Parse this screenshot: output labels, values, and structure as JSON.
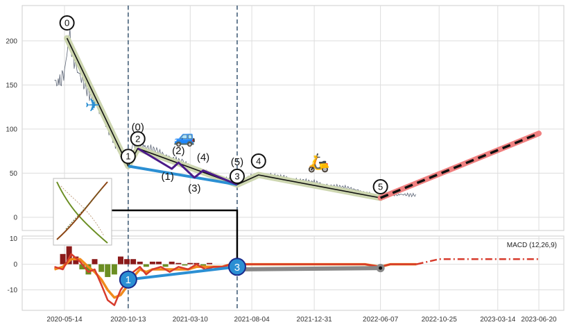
{
  "chart_data": [
    {
      "type": "line",
      "panel": "price",
      "x_ticks": [
        "2020-05-14",
        "2020-10-13",
        "2021-03-10",
        "2021-08-04",
        "2021-12-31",
        "2022-06-07",
        "2022-10-25",
        "2023-03-14",
        "2023-06-20"
      ],
      "y_ticks": [
        0,
        50,
        100,
        150,
        200
      ],
      "ylim": [
        -15,
        240
      ],
      "grid": true,
      "price_series": {
        "x": [
          "2020-04-20",
          "2020-05-01",
          "2020-05-14",
          "2020-05-25",
          "2020-06-10",
          "2020-07-01",
          "2020-08-01",
          "2020-09-01",
          "2020-09-20",
          "2020-10-13",
          "2020-10-25",
          "2020-11-20",
          "2020-12-20",
          "2021-01-20",
          "2021-02-20",
          "2021-03-20",
          "2021-04-20",
          "2021-05-20",
          "2021-06-20",
          "2021-07-01",
          "2021-07-25",
          "2021-08-20",
          "2021-09-20",
          "2021-10-20",
          "2021-11-20",
          "2021-12-31",
          "2022-02-01",
          "2022-03-15",
          "2022-04-20",
          "2022-06-07",
          "2022-07-20",
          "2022-09-01"
        ],
        "values": [
          155,
          150,
          165,
          205,
          170,
          150,
          125,
          95,
          75,
          58,
          82,
          80,
          75,
          68,
          62,
          55,
          50,
          46,
          42,
          38,
          45,
          48,
          47,
          45,
          42,
          40,
          36,
          34,
          30,
          22,
          26,
          25
        ]
      },
      "wave_points": [
        {
          "label": "0",
          "x": "2020-05-20",
          "y": 203
        },
        {
          "label": "1",
          "x": "2020-10-13",
          "y": 58
        },
        {
          "label": "2",
          "x": "2020-11-05",
          "y": 78
        },
        {
          "label": "3",
          "x": "2021-06-30",
          "y": 37
        },
        {
          "label": "4",
          "x": "2021-08-20",
          "y": 48
        },
        {
          "label": "5",
          "x": "2022-06-07",
          "y": 22
        }
      ],
      "sub_wave_points": [
        {
          "label": "(0)",
          "x": "2020-11-05",
          "y": 78
        },
        {
          "label": "(1)",
          "x": "2021-01-25",
          "y": 55
        },
        {
          "label": "(2)",
          "x": "2021-02-10",
          "y": 62
        },
        {
          "label": "(3)",
          "x": "2021-03-20",
          "y": 45
        },
        {
          "label": "(4)",
          "x": "2021-04-10",
          "y": 53
        },
        {
          "label": "(5)",
          "x": "2021-06-30",
          "y": 37
        }
      ],
      "projection": {
        "x": [
          "2022-06-07",
          "2023-06-20"
        ],
        "values": [
          22,
          95
        ]
      },
      "vertical_markers": [
        "2020-10-13",
        "2021-06-30"
      ],
      "icons": [
        {
          "name": "airplane-icon",
          "glyph": "✈",
          "x": "2020-07-20",
          "y": 120
        },
        {
          "name": "car-icon",
          "glyph": "🚙",
          "x": "2021-02-25",
          "y": 84
        },
        {
          "name": "scooter-icon",
          "glyph": "🛵",
          "x": "2022-01-10",
          "y": 55
        }
      ],
      "colors": {
        "price": "#5b6475",
        "wave_band": "#cdd6b0",
        "wave_line": "#111111",
        "sub_wave": "#4b1a88",
        "leg_1_3": "#2b8fd3",
        "projection_band": "#f08080",
        "projection_line": "#111111",
        "marker": "#45607a"
      }
    },
    {
      "type": "line",
      "panel": "macd",
      "title": "MACD (12,26,9)",
      "y_ticks": [
        10,
        0,
        -10
      ],
      "ylim": [
        -18,
        11
      ],
      "grid": true,
      "macd_line": {
        "x": [
          "2020-04-20",
          "2020-05-10",
          "2020-05-30",
          "2020-06-20",
          "2020-07-10",
          "2020-07-25",
          "2020-08-10",
          "2020-08-25",
          "2020-09-10",
          "2020-09-25",
          "2020-10-13",
          "2020-10-25",
          "2020-11-10",
          "2020-11-25",
          "2020-12-10",
          "2020-12-30",
          "2021-01-20",
          "2021-02-10",
          "2021-03-05",
          "2021-03-25",
          "2021-04-15",
          "2021-05-05",
          "2021-05-25",
          "2021-06-15",
          "2021-06-30",
          "2021-08-01",
          "2021-09-01",
          "2021-10-01",
          "2021-11-01",
          "2021-12-01",
          "2022-01-01",
          "2022-02-01",
          "2022-03-01",
          "2022-04-01",
          "2022-05-01",
          "2022-06-07",
          "2022-07-01",
          "2022-08-01",
          "2022-09-01"
        ],
        "values": [
          -1,
          -2,
          4,
          1,
          -3,
          -2,
          -8,
          -14,
          -16,
          -10,
          -6,
          -3,
          -1,
          -4,
          -2,
          -1,
          -3,
          -1,
          -2,
          0,
          -2,
          -1,
          -1,
          0,
          0,
          0,
          0,
          0,
          0,
          0,
          0,
          0,
          0,
          0,
          0,
          -1,
          0,
          0,
          0
        ]
      },
      "signal_line": {
        "x": [
          "2020-04-20",
          "2020-05-10",
          "2020-05-30",
          "2020-06-20",
          "2020-07-10",
          "2020-07-25",
          "2020-08-10",
          "2020-08-25",
          "2020-09-10",
          "2020-09-25",
          "2020-10-13",
          "2020-10-25",
          "2020-11-10",
          "2020-11-25",
          "2020-12-10",
          "2020-12-30",
          "2021-01-20",
          "2021-02-10",
          "2021-03-05",
          "2021-03-25",
          "2021-04-15",
          "2021-05-05",
          "2021-05-25",
          "2021-06-15",
          "2021-06-30",
          "2021-08-01",
          "2021-09-01",
          "2021-10-01",
          "2021-11-01",
          "2021-12-01",
          "2022-01-01",
          "2022-02-01",
          "2022-03-01",
          "2022-04-01",
          "2022-05-01",
          "2022-06-07",
          "2022-07-01",
          "2022-08-01",
          "2022-09-01"
        ],
        "values": [
          -2,
          -1,
          2,
          2,
          -1,
          -3,
          -6,
          -10,
          -13,
          -12,
          -8,
          -5,
          -2,
          -3,
          -2,
          -2,
          -2,
          -2,
          -2,
          -1,
          -1,
          -1,
          -1,
          0,
          0,
          0,
          0,
          0,
          0,
          0,
          0,
          0,
          0,
          0,
          0,
          -1,
          0,
          0,
          0
        ]
      },
      "histogram": {
        "x": [
          "2020-05-10",
          "2020-05-25",
          "2020-06-10",
          "2020-06-25",
          "2020-07-10",
          "2020-07-25",
          "2020-08-10",
          "2020-08-25",
          "2020-09-10",
          "2020-09-25",
          "2020-10-10",
          "2020-10-25",
          "2020-11-10",
          "2020-11-25",
          "2020-12-10",
          "2020-12-25",
          "2021-01-10",
          "2021-01-25",
          "2021-02-10",
          "2021-02-25",
          "2021-03-10",
          "2021-03-25",
          "2021-04-10",
          "2021-04-25"
        ],
        "values": [
          4,
          7,
          3,
          -2,
          -4,
          2,
          -3,
          -5,
          -4,
          3,
          2,
          2,
          1,
          -1,
          1,
          1,
          -1,
          1,
          0.5,
          -0.5,
          0.5,
          0.5,
          -0.5,
          0.5
        ]
      },
      "projection": {
        "x": [
          "2022-09-01",
          "2022-10-25",
          "2023-06-20"
        ],
        "values": [
          0,
          2,
          2
        ]
      },
      "points_1_3": [
        {
          "label": "1",
          "x": "2020-10-13",
          "y": -6
        },
        {
          "label": "3",
          "x": "2021-06-30",
          "y": -1
        }
      ],
      "flat_leg": {
        "x": [
          "2021-06-30",
          "2022-06-07"
        ],
        "values": [
          -2,
          -1.5
        ]
      },
      "colors": {
        "macd": "#d73b2c",
        "signal": "#f08a1c",
        "hist_pos": "#8b1a1a",
        "hist_neg": "#6b8e23",
        "leg_1_3": "#2b8fd3",
        "flat_leg": "#888888"
      }
    }
  ]
}
